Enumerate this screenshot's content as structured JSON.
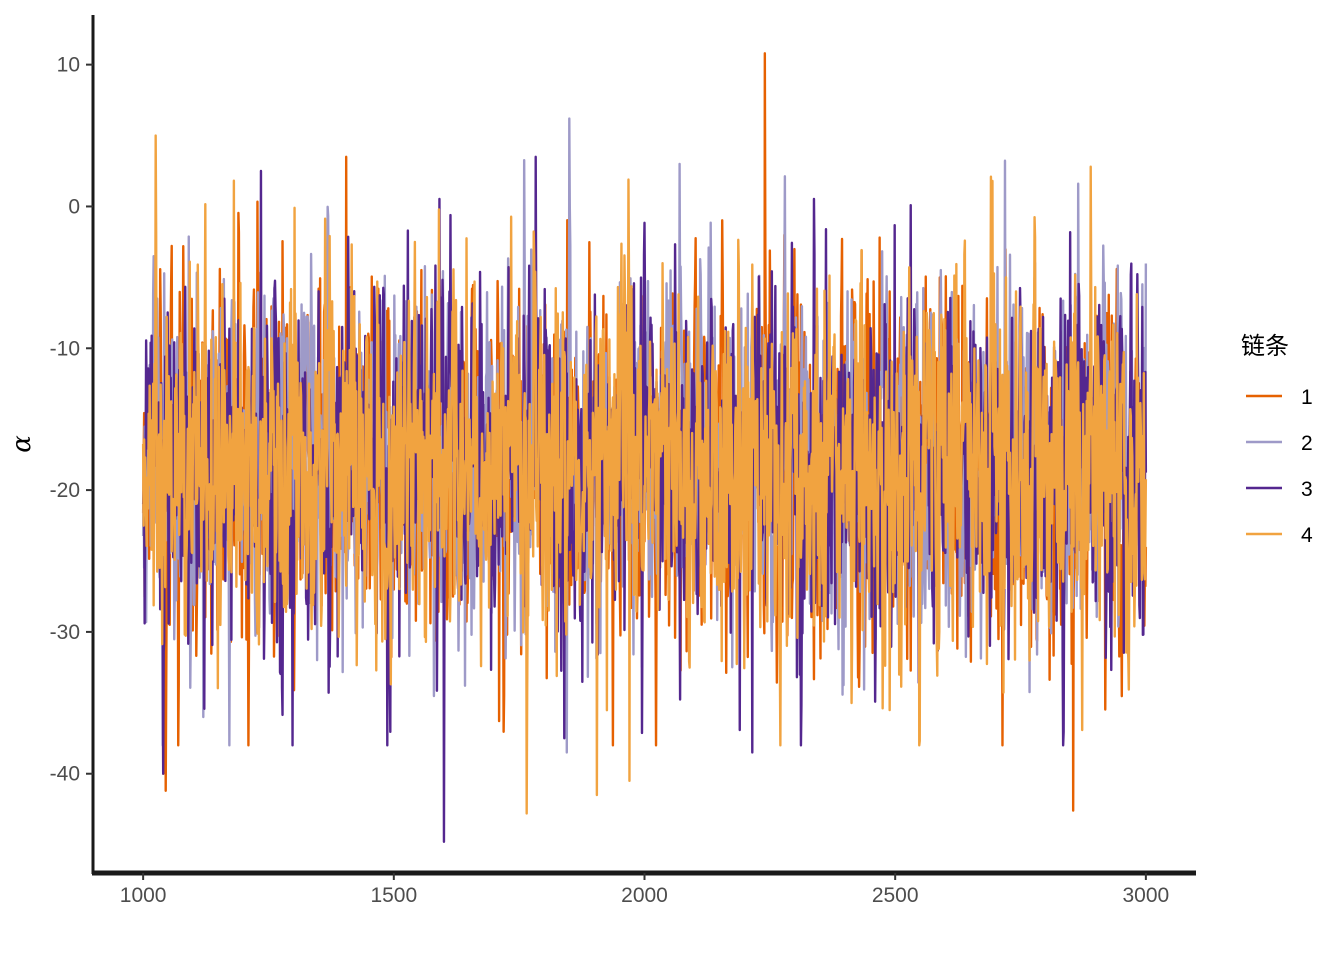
{
  "chart_data": {
    "type": "line",
    "title": "",
    "xlabel": "",
    "ylabel": "α",
    "xlim": [
      900,
      3100
    ],
    "ylim": [
      -47,
      13.5
    ],
    "x_ticks": [
      1000,
      1500,
      2000,
      2500,
      3000
    ],
    "y_ticks": [
      10,
      0,
      -10,
      -20,
      -30,
      -40
    ],
    "x_tick_labels": [
      "1000",
      "1500",
      "2000",
      "2500",
      "3000"
    ],
    "y_tick_labels": [
      "10",
      "0",
      "-10",
      "-20",
      "-30",
      "-40"
    ],
    "x_range": [
      1000,
      3000
    ],
    "center": -18,
    "spread": 5.5,
    "grid": false,
    "legend": {
      "title": "链条",
      "placement": "right",
      "entries": [
        {
          "label": "1",
          "color": "#E66101"
        },
        {
          "label": "2",
          "color": "#9E9AC8"
        },
        {
          "label": "3",
          "color": "#54278F"
        },
        {
          "label": "4",
          "color": "#F1A340"
        }
      ]
    },
    "series": [
      {
        "name": "1",
        "color": "#E66101",
        "extremes": [
          [
            1045,
            -41.2
          ],
          [
            1040,
            -40
          ],
          [
            2240,
            10.8
          ],
          [
            2855,
            -42.6
          ],
          [
            1405,
            3.5
          ]
        ]
      },
      {
        "name": "2",
        "color": "#9E9AC8",
        "extremes": [
          [
            1850,
            6.2
          ],
          [
            1845,
            -38.5
          ],
          [
            2070,
            3.0
          ],
          [
            2865,
            1.6
          ],
          [
            1120,
            -36
          ]
        ]
      },
      {
        "name": "3",
        "color": "#54278F",
        "extremes": [
          [
            1600,
            -44.8
          ],
          [
            1040,
            -40
          ],
          [
            1840,
            -37.5
          ],
          [
            2215,
            -38.5
          ],
          [
            1235,
            2.5
          ]
        ]
      },
      {
        "name": "4",
        "color": "#F1A340",
        "extremes": [
          [
            1025,
            5.0
          ],
          [
            1765,
            -42.8
          ],
          [
            1970,
            -40.5
          ],
          [
            1905,
            -41.5
          ],
          [
            2890,
            2.8
          ]
        ]
      }
    ]
  }
}
